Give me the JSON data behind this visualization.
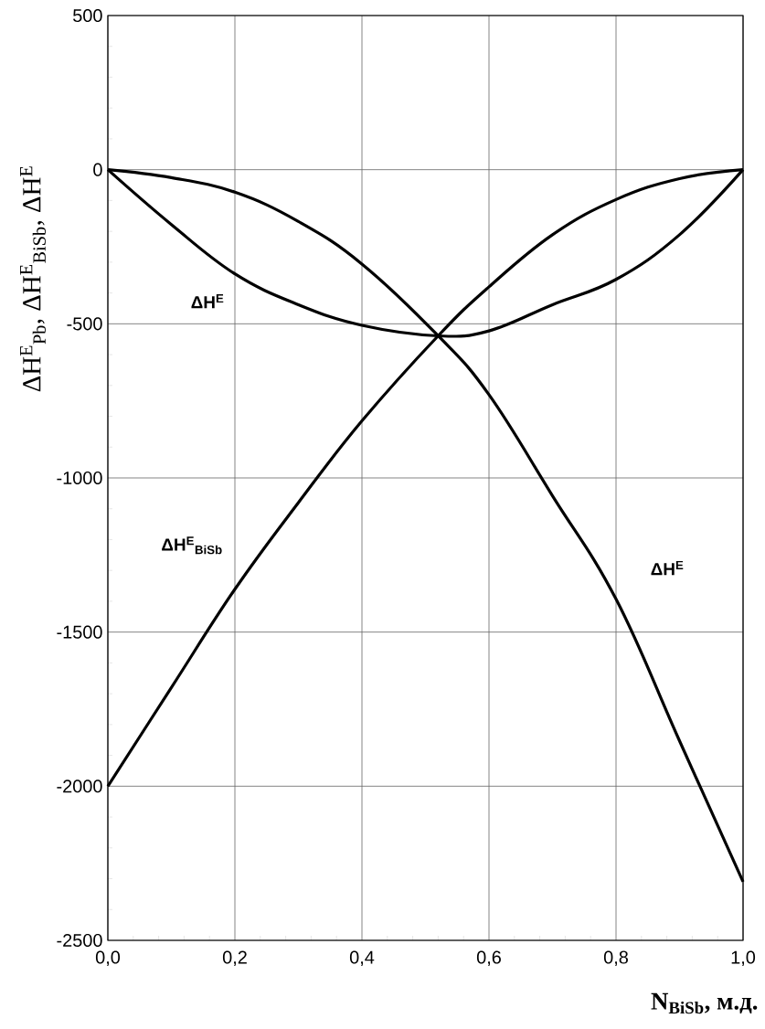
{
  "chart_data": {
    "type": "line",
    "xlabel": "N$_{BiSb}$, м.д.",
    "ylabel": "ΔH$^{E}$$_{Pb}$,  ΔH$^{E}$$_{BiSb}$,  ΔH$^{E}$",
    "x": [
      0,
      0.1,
      0.2,
      0.3,
      0.4,
      0.52,
      0.6,
      0.7,
      0.8,
      0.9,
      1.0
    ],
    "series": [
      {
        "name": "ΔH$^{E}$",
        "color": "#000000",
        "values": [
          0,
          -178,
          -338,
          -438,
          -505,
          -539,
          -523,
          -438,
          -356,
          -211,
          0
        ]
      },
      {
        "name": "ΔH$^{E}$$_{BiSb}$",
        "color": "#000000",
        "values": [
          -2000,
          -1680,
          -1361,
          -1080,
          -815,
          -539,
          -380,
          -211,
          -97,
          -29,
          0
        ]
      },
      {
        "name": "ΔH$^{E}$",
        "color": "#000000",
        "values": [
          0,
          -26,
          -73,
          -168,
          -306,
          -539,
          -730,
          -1058,
          -1393,
          -1853,
          -2310
        ]
      }
    ],
    "xlim": [
      0,
      1
    ],
    "ylim": [
      -2500,
      500
    ],
    "xticks": [
      {
        "value": 0,
        "label": "0,0"
      },
      {
        "value": 0.2,
        "label": "0,2"
      },
      {
        "value": 0.4,
        "label": "0,4"
      },
      {
        "value": 0.6,
        "label": "0,6"
      },
      {
        "value": 0.8,
        "label": "0,8"
      },
      {
        "value": 1,
        "label": "1,0"
      }
    ],
    "yticks": [
      -2500,
      -2000,
      -1500,
      -1000,
      -500,
      0,
      500
    ],
    "grid": true,
    "line_style": "solid"
  }
}
